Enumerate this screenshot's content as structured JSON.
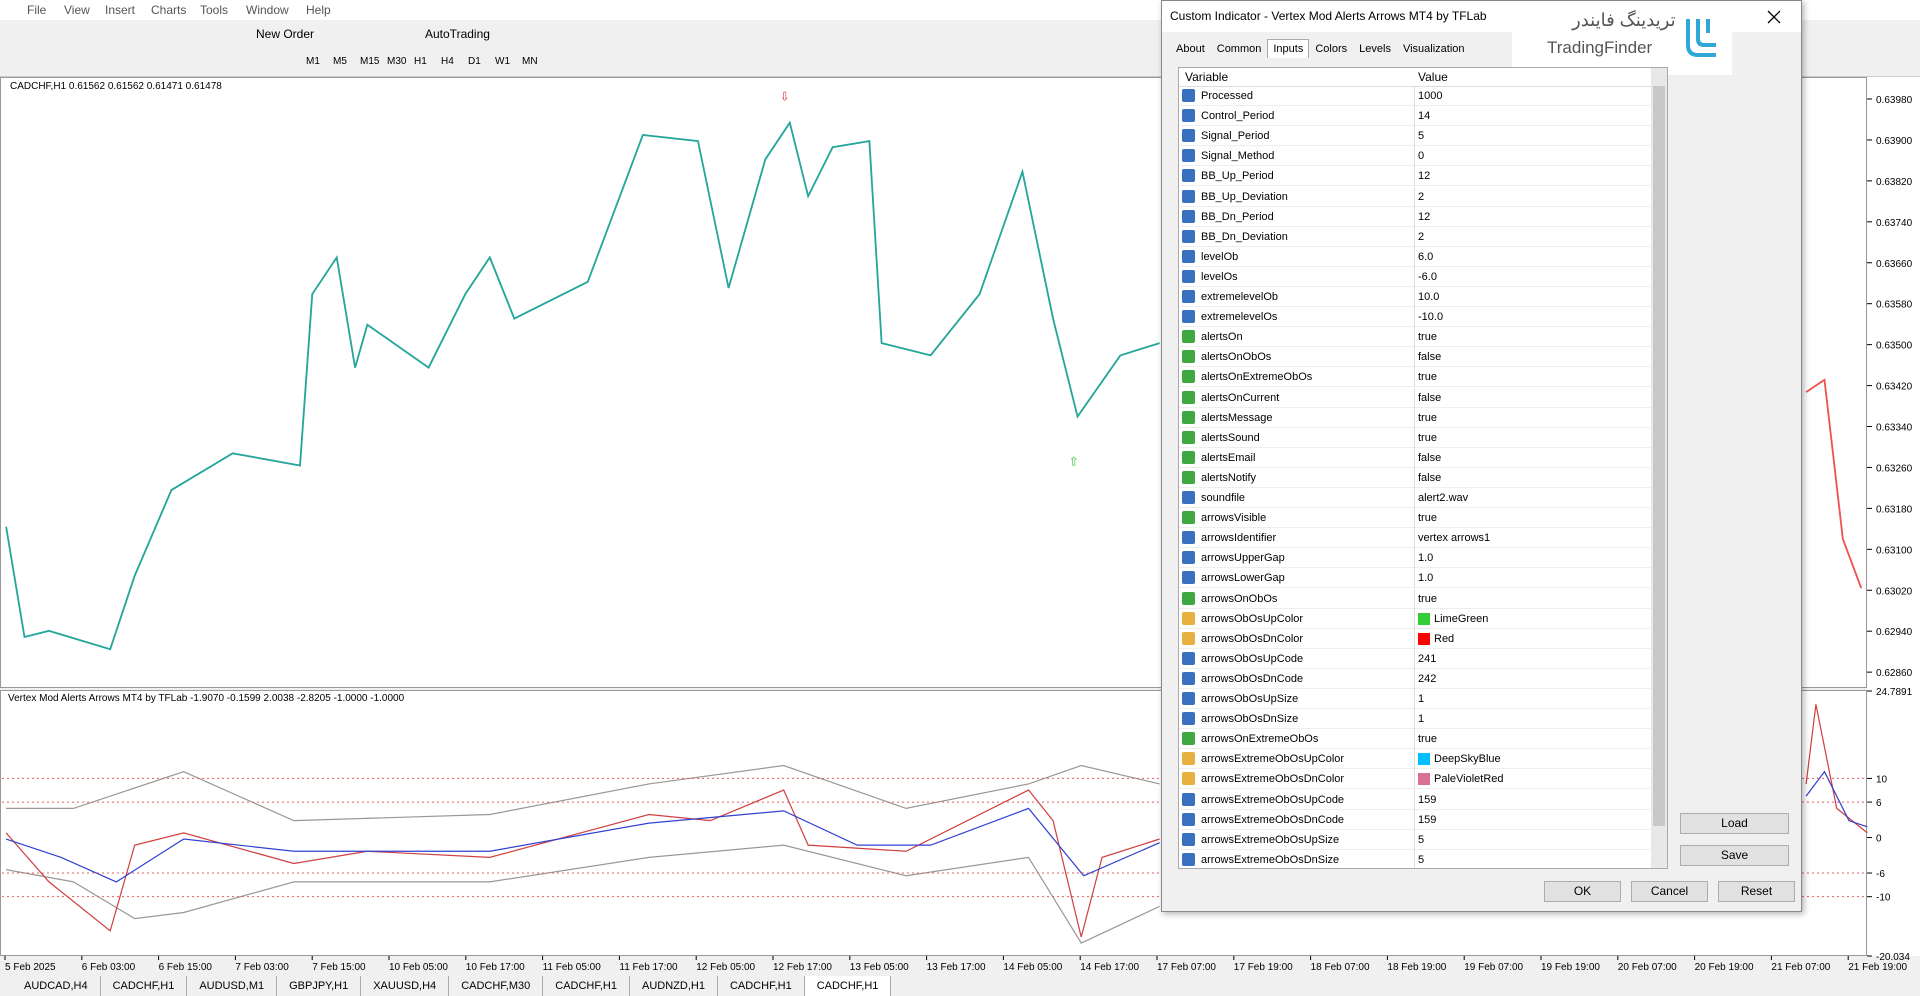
{
  "menu": [
    "File",
    "View",
    "Insert",
    "Charts",
    "Tools",
    "Window",
    "Help"
  ],
  "toolbar": {
    "new_order": "New Order",
    "auto_trading": "AutoTrading",
    "timeframes": [
      "M1",
      "M5",
      "M15",
      "M30",
      "H1",
      "H4",
      "D1",
      "W1",
      "MN"
    ]
  },
  "chart": {
    "symbol_info": "CADCHF,H1  0.61562 0.61562 0.61471 0.61478",
    "indicator_info": "Vertex Mod Alerts Arrows MT4 by TFLab -1.9070 -0.1599 2.0038 -2.8205 -1.0000 -1.0000",
    "price_axis": {
      "ylim": [
        0.62829,
        0.64023
      ],
      "ticks": [
        {
          "value": 0.6398,
          "label": "0.63980"
        },
        {
          "value": 0.639,
          "label": "0.63900"
        },
        {
          "value": 0.6382,
          "label": "0.63820"
        },
        {
          "value": 0.6374,
          "label": "0.63740"
        },
        {
          "value": 0.6366,
          "label": "0.63660"
        },
        {
          "value": 0.6358,
          "label": "0.63580"
        },
        {
          "value": 0.635,
          "label": "0.63500"
        },
        {
          "value": 0.6342,
          "label": "0.63420"
        },
        {
          "value": 0.6334,
          "label": "0.63340"
        },
        {
          "value": 0.6326,
          "label": "0.63260"
        },
        {
          "value": 0.6318,
          "label": "0.63180"
        },
        {
          "value": 0.631,
          "label": "0.63100"
        },
        {
          "value": 0.6302,
          "label": "0.63020"
        },
        {
          "value": 0.6294,
          "label": "0.62940"
        },
        {
          "value": 0.6286,
          "label": "0.62860"
        }
      ]
    },
    "indicator_axis": {
      "ylim": [
        -20.034,
        24.7891
      ],
      "ticks": [
        24.7891,
        10,
        6,
        0,
        -6,
        -10,
        -20.034
      ],
      "levels": [
        10,
        6,
        -6,
        -10
      ]
    },
    "time_axis": [
      "5 Feb 2025",
      "6 Feb 03:00",
      "6 Feb 15:00",
      "7 Feb 03:00",
      "7 Feb 15:00",
      "10 Feb 05:00",
      "10 Feb 17:00",
      "11 Feb 05:00",
      "11 Feb 17:00",
      "12 Feb 05:00",
      "12 Feb 17:00",
      "13 Feb 05:00",
      "13 Feb 17:00",
      "14 Feb 05:00",
      "14 Feb 17:00",
      "17 Feb 07:00",
      "17 Feb 19:00",
      "18 Feb 07:00",
      "18 Feb 19:00",
      "19 Feb 07:00",
      "19 Feb 19:00",
      "20 Feb 07:00",
      "20 Feb 19:00",
      "21 Feb 07:00",
      "21 Feb 19:00"
    ]
  },
  "tabs": {
    "items": [
      "AUDCAD,H4",
      "CADCHF,H1",
      "AUDUSD,M1",
      "GBPJPY,H1",
      "XAUUSD,H4",
      "CADCHF,M30",
      "CADCHF,H1",
      "AUDNZD,H1",
      "CADCHF,H1",
      "CADCHF,H1"
    ],
    "active": 9
  },
  "dialog": {
    "title": "Custom Indicator - Vertex Mod Alerts Arrows MT4 by TFLab",
    "tabs": [
      "About",
      "Common",
      "Inputs",
      "Colors",
      "Levels",
      "Visualization"
    ],
    "active_tab": 2,
    "columns": [
      "Variable",
      "Value"
    ],
    "rows": [
      {
        "variable": "Processed",
        "value": "1000"
      },
      {
        "variable": "Control_Period",
        "value": "14"
      },
      {
        "variable": "Signal_Period",
        "value": "5"
      },
      {
        "variable": "Signal_Method",
        "value": "0"
      },
      {
        "variable": "BB_Up_Period",
        "value": "12"
      },
      {
        "variable": "BB_Up_Deviation",
        "value": "2"
      },
      {
        "variable": "BB_Dn_Period",
        "value": "12"
      },
      {
        "variable": "BB_Dn_Deviation",
        "value": "2"
      },
      {
        "variable": "levelOb",
        "value": "6.0"
      },
      {
        "variable": "levelOs",
        "value": "-6.0"
      },
      {
        "variable": "extremelevelOb",
        "value": "10.0"
      },
      {
        "variable": "extremelevelOs",
        "value": "-10.0"
      },
      {
        "variable": "alertsOn",
        "value": "true"
      },
      {
        "variable": "alertsOnObOs",
        "value": "false"
      },
      {
        "variable": "alertsOnExtremeObOs",
        "value": "true"
      },
      {
        "variable": "alertsOnCurrent",
        "value": "false"
      },
      {
        "variable": "alertsMessage",
        "value": "true"
      },
      {
        "variable": "alertsSound",
        "value": "true"
      },
      {
        "variable": "alertsEmail",
        "value": "false"
      },
      {
        "variable": "alertsNotify",
        "value": "false"
      },
      {
        "variable": "soundfile",
        "value": "alert2.wav"
      },
      {
        "variable": "arrowsVisible",
        "value": "true"
      },
      {
        "variable": "arrowsIdentifier",
        "value": "vertex arrows1"
      },
      {
        "variable": "arrowsUpperGap",
        "value": "1.0"
      },
      {
        "variable": "arrowsLowerGap",
        "value": "1.0"
      },
      {
        "variable": "arrowsOnObOs",
        "value": "true"
      },
      {
        "variable": "arrowsObOsUpColor",
        "value": "LimeGreen"
      },
      {
        "variable": "arrowsObOsDnColor",
        "value": "Red"
      },
      {
        "variable": "arrowsObOsUpCode",
        "value": "241"
      },
      {
        "variable": "arrowsObOsDnCode",
        "value": "242"
      },
      {
        "variable": "arrowsObOsUpSize",
        "value": "1"
      },
      {
        "variable": "arrowsObOsDnSize",
        "value": "1"
      },
      {
        "variable": "arrowsOnExtremeObOs",
        "value": "true"
      },
      {
        "variable": "arrowsExtremeObOsUpColor",
        "value": "DeepSkyBlue"
      },
      {
        "variable": "arrowsExtremeObOsDnColor",
        "value": "PaleVioletRed"
      },
      {
        "variable": "arrowsExtremeObOsUpCode",
        "value": "159"
      },
      {
        "variable": "arrowsExtremeObOsDnCode",
        "value": "159"
      },
      {
        "variable": "arrowsExtremeObOsUpSize",
        "value": "5"
      },
      {
        "variable": "arrowsExtremeObOsDnSize",
        "value": "5"
      }
    ],
    "buttons": {
      "load": "Load",
      "save": "Save",
      "ok": "OK",
      "cancel": "Cancel",
      "reset": "Reset"
    }
  },
  "watermark": {
    "fa": "تریدینگ فایندر",
    "en": "TradingFinder"
  }
}
